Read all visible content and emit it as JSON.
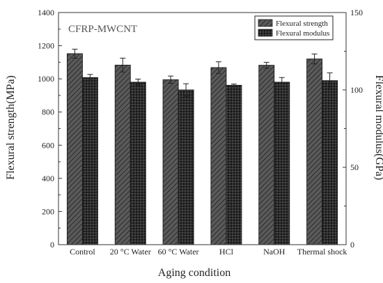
{
  "chart_data": {
    "type": "bar",
    "annotation": "CFRP-MWCNT",
    "xlabel": "Aging condition",
    "ylabel_left": "Flexural strength(MPa)",
    "ylabel_right": "Flexural modulus(GPa)",
    "categories": [
      "Control",
      "20 °C Water",
      "60 °C Water",
      "HCl",
      "NaOH",
      "Thermal shock"
    ],
    "ylim_left": [
      0,
      1400
    ],
    "yticks_left": [
      0,
      200,
      400,
      600,
      800,
      1000,
      1200,
      1400
    ],
    "ylim_right": [
      0,
      150
    ],
    "yticks_right": [
      0,
      50,
      100,
      150
    ],
    "grid": false,
    "legend_position": "top-right",
    "series": [
      {
        "name": "Flexural strength",
        "axis": "left",
        "values": [
          1152,
          1083,
          995,
          1068,
          1082,
          1120
        ],
        "errors": [
          27,
          42,
          22,
          35,
          18,
          30
        ],
        "pattern": "diagonal-hatch"
      },
      {
        "name": "Flexural modulus",
        "axis": "right",
        "values": [
          108,
          105,
          100,
          103,
          105,
          106
        ],
        "errors": [
          2,
          2,
          4,
          0.8,
          3,
          5
        ],
        "pattern": "crosshatch"
      }
    ]
  }
}
